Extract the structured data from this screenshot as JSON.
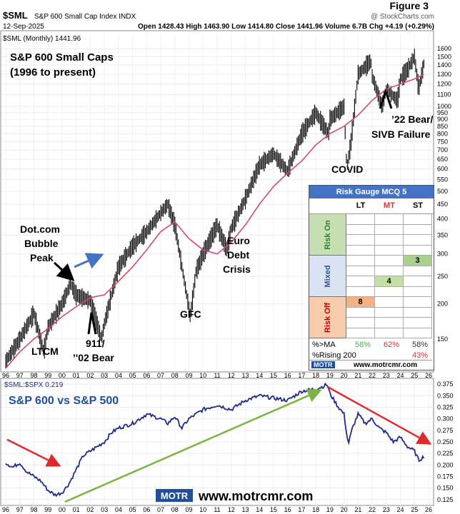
{
  "figure_label": "Figure 3",
  "header": {
    "symbol": "$SML",
    "name": "S&P 600 Small Cap Index INDX",
    "brand": "@ StockCharts.com",
    "date": "12-Sep-2025",
    "ohlc": "Open 1428.43  High 1463.90  Low 1414.80  Close 1441.96  Volume 6.7B  Chg +4.19 (+0.29%)",
    "legend": "$SML (Monthly) 1441.96",
    "lower_legend": "$SML:$SPX 0.219"
  },
  "panel_titles": {
    "main_line1": "S&P 600 Small Caps",
    "main_line2": "(1996 to present)",
    "ratio": "S&P 600 vs S&P 500"
  },
  "annotations": {
    "dotcom": [
      "Dot.com",
      "Bubble",
      "Peak"
    ],
    "ltcm": "LTCM",
    "bear911": [
      "911/",
      "’'02 Bear"
    ],
    "gfc": "GFC",
    "euro": [
      "Euro",
      "Debt",
      "Crisis"
    ],
    "covid": "COVID",
    "bear22": [
      "’22 Bear/",
      "SIVB Failure"
    ]
  },
  "footer": {
    "url": "www.motrcmr.com",
    "logo": "MOTR"
  },
  "risk_gauge": {
    "title": "Risk Gauge MCQ 5",
    "columns": [
      "LT",
      "MT",
      "ST"
    ],
    "column_colors": [
      "#000000",
      "#e03030",
      "#000000"
    ],
    "zones": [
      {
        "label": "Risk On",
        "color": "#c6e0b4",
        "text_color": "#2e7d32"
      },
      {
        "label": "Mixed",
        "color": "#dae3f3",
        "text_color": "#2f5597"
      },
      {
        "label": "Risk Off",
        "color": "#f8cbad",
        "text_color": "#c00000"
      }
    ],
    "readings": {
      "LT": 8,
      "MT": 4,
      "ST": 3
    },
    "pct_ma_label": "%>MA",
    "pct_ma": [
      "58%",
      "62%",
      "58%"
    ],
    "pct_ma_colors": [
      "#4caf50",
      "#e03030",
      "#333333"
    ],
    "rising_label": "%Rising 200",
    "rising": "43%",
    "footer_logo": "MOTR",
    "footer_url": "www.motrcmr.com"
  },
  "chart_data": [
    {
      "type": "line",
      "title": "S&P 600 Small Cap Index (Monthly)",
      "yscale": "log",
      "ylim": [
        118,
        1800
      ],
      "y_ticks": [
        1600,
        1500,
        1400,
        1300,
        1200,
        1100,
        1000,
        950,
        900,
        850,
        800,
        750,
        700,
        650,
        600,
        550,
        500,
        450,
        400,
        350,
        300,
        250,
        200,
        150
      ],
      "x_tick_labels": [
        "96",
        "97",
        "98",
        "99",
        "00",
        "01",
        "02",
        "03",
        "04",
        "05",
        "06",
        "07",
        "08",
        "09",
        "10",
        "11",
        "12",
        "13",
        "14",
        "15",
        "16",
        "17",
        "18",
        "19",
        "20",
        "21",
        "22",
        "23",
        "24",
        "25",
        "26"
      ],
      "series": [
        {
          "name": "$SML",
          "color": "#000000",
          "x": [
            1996,
            1997,
            1998,
            1998.7,
            1999,
            2000,
            2000.6,
            2001,
            2002,
            2002.8,
            2003,
            2004,
            2005,
            2006,
            2007,
            2007.5,
            2008,
            2009.1,
            2009.5,
            2010,
            2011,
            2011.7,
            2012,
            2013,
            2014,
            2015,
            2016,
            2017,
            2018,
            2018.9,
            2019,
            2020,
            2020.2,
            2020.5,
            2021,
            2021.9,
            2022,
            2022.7,
            2023,
            2023.8,
            2024,
            2024.5,
            2025,
            2025.3,
            2025.7
          ],
          "y": [
            125,
            150,
            185,
            135,
            165,
            200,
            235,
            215,
            205,
            150,
            170,
            270,
            320,
            360,
            420,
            450,
            380,
            180,
            260,
            300,
            380,
            310,
            370,
            470,
            620,
            680,
            590,
            800,
            950,
            800,
            900,
            1000,
            600,
            750,
            1300,
            1450,
            1280,
            1000,
            1150,
            1050,
            1250,
            1350,
            1500,
            1150,
            1442
          ]
        },
        {
          "name": "MA",
          "color": "#d34a6b",
          "x": [
            1996,
            1997,
            1998,
            1999,
            2000,
            2001,
            2002,
            2003,
            2004,
            2005,
            2006,
            2007,
            2008,
            2009,
            2010,
            2011,
            2012,
            2013,
            2014,
            2015,
            2016,
            2017,
            2018,
            2019,
            2020,
            2021,
            2022,
            2023,
            2024,
            2025,
            2025.7
          ],
          "y": [
            118,
            135,
            150,
            163,
            180,
            195,
            210,
            215,
            240,
            270,
            310,
            360,
            390,
            340,
            310,
            300,
            330,
            380,
            450,
            520,
            580,
            640,
            730,
            800,
            850,
            930,
            1050,
            1150,
            1200,
            1250,
            1300
          ]
        }
      ]
    },
    {
      "type": "line",
      "title": "$SML:$SPX",
      "ylim": [
        0.12,
        0.38
      ],
      "y_ticks": [
        0.375,
        0.35,
        0.325,
        0.3,
        0.275,
        0.25,
        0.225,
        0.2,
        0.175,
        0.15,
        0.125
      ],
      "x_tick_labels": [
        "96",
        "97",
        "98",
        "99",
        "00",
        "01",
        "02",
        "03",
        "04",
        "05",
        "06",
        "07",
        "08",
        "09",
        "10",
        "11",
        "12",
        "13",
        "14",
        "15",
        "16",
        "17",
        "18",
        "19",
        "20",
        "21",
        "22",
        "23",
        "24",
        "25",
        "26"
      ],
      "series": [
        {
          "name": "$SML:$SPX",
          "color": "#1f2a8c",
          "x": [
            1996,
            1996.5,
            1997,
            1997.5,
            1998,
            1998.5,
            1999,
            1999.5,
            2000,
            2000.5,
            2001,
            2001.5,
            2002,
            2003,
            2003.5,
            2004,
            2005,
            2006,
            2007,
            2007.5,
            2008,
            2008.5,
            2009,
            2009.5,
            2010,
            2011,
            2012,
            2013,
            2014,
            2015,
            2016,
            2017,
            2018,
            2018.5,
            2018.8,
            2019,
            2019.5,
            2020,
            2020.3,
            2020.6,
            2021,
            2021.5,
            2022,
            2022.5,
            2023,
            2023.5,
            2024,
            2024.5,
            2025,
            2025.3,
            2025.7
          ],
          "y": [
            0.205,
            0.195,
            0.205,
            0.185,
            0.175,
            0.165,
            0.145,
            0.135,
            0.14,
            0.16,
            0.19,
            0.22,
            0.23,
            0.25,
            0.27,
            0.28,
            0.29,
            0.31,
            0.3,
            0.29,
            0.305,
            0.28,
            0.3,
            0.31,
            0.32,
            0.33,
            0.32,
            0.34,
            0.35,
            0.345,
            0.34,
            0.36,
            0.365,
            0.37,
            0.375,
            0.355,
            0.33,
            0.31,
            0.245,
            0.28,
            0.31,
            0.29,
            0.3,
            0.28,
            0.27,
            0.25,
            0.26,
            0.24,
            0.23,
            0.21,
            0.219
          ]
        }
      ],
      "trendlines": [
        {
          "color": "#e02a2a",
          "from": [
            1996.1,
            0.255
          ],
          "to": [
            1999.7,
            0.2
          ]
        },
        {
          "color": "#7cb342",
          "from": [
            2000.2,
            0.12
          ],
          "to": [
            2018.2,
            0.36
          ]
        },
        {
          "color": "#e02a2a",
          "from": [
            2018.8,
            0.37
          ],
          "to": [
            2026,
            0.248
          ]
        }
      ]
    }
  ]
}
